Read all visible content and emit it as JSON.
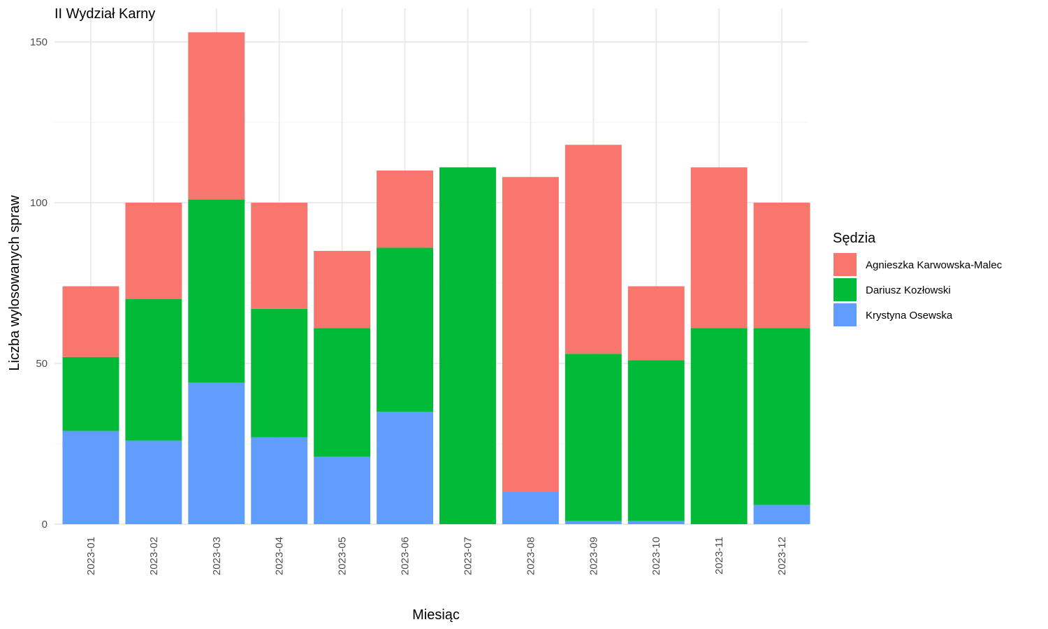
{
  "chart_data": {
    "type": "bar",
    "stacked": true,
    "title": "II Wydział Karny",
    "xlabel": "Miesiąc",
    "ylabel": "Liczba wylosowanych spraw",
    "ylim": [
      0,
      158
    ],
    "yticks": [
      0,
      50,
      100,
      150
    ],
    "grid": true,
    "legend": {
      "title": "Sędzia",
      "position": "right"
    },
    "categories": [
      "2023-01",
      "2023-02",
      "2023-03",
      "2023-04",
      "2023-05",
      "2023-06",
      "2023-07",
      "2023-08",
      "2023-09",
      "2023-10",
      "2023-11",
      "2023-12"
    ],
    "series": [
      {
        "name": "Krystyna Osewska",
        "color": "#619CFF",
        "values": [
          29,
          26,
          44,
          27,
          21,
          35,
          0,
          10,
          1,
          1,
          0,
          6
        ]
      },
      {
        "name": "Dariusz Kozłowski",
        "color": "#00BA38",
        "values": [
          23,
          44,
          57,
          40,
          40,
          51,
          111,
          0,
          52,
          50,
          61,
          55
        ]
      },
      {
        "name": "Agnieszka Karwowska-Malec",
        "color": "#F8766D",
        "values": [
          22,
          30,
          52,
          33,
          24,
          24,
          0,
          98,
          65,
          23,
          50,
          39
        ]
      }
    ],
    "legend_order": [
      "Agnieszka Karwowska-Malec",
      "Dariusz Kozłowski",
      "Krystyna Osewska"
    ]
  }
}
